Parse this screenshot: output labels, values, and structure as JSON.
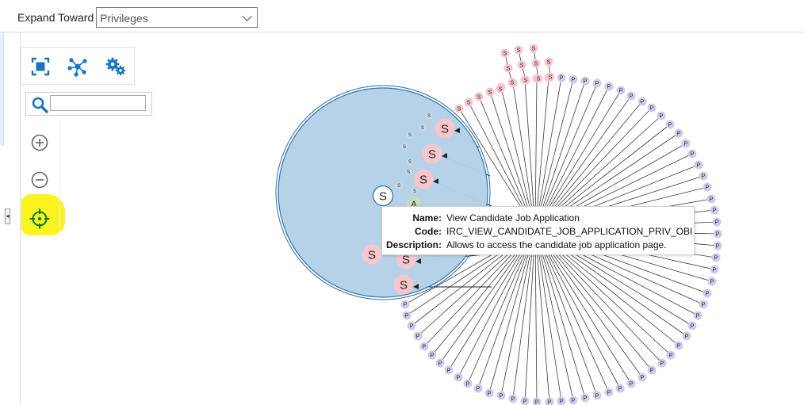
{
  "header": {
    "expand_label": "Expand Toward",
    "expand_select": {
      "value": "Privileges"
    }
  },
  "toolbar": {
    "tools": [
      {
        "icon": "fit-to-screen-icon"
      },
      {
        "icon": "network-layout-icon"
      },
      {
        "icon": "settings-gears-icon"
      }
    ],
    "search": {
      "icon": "search-icon",
      "value": ""
    },
    "zoom_in_icon": "plus-circle-icon",
    "zoom_out_icon": "minus-circle-icon",
    "center_icon": "crosshair-target-icon",
    "highlight_color": "#fbf31f"
  },
  "graph": {
    "colors": {
      "selection_fill": "#b4d1e8",
      "selection_stroke": "#2b6fa8",
      "s_node_fill": "#f7c6cc",
      "p_node_fill": "#cfcaec",
      "edge": "#3a3a3a"
    },
    "node_letters": {
      "s": "S",
      "p": "P",
      "a": "A"
    },
    "selected_node": "S"
  },
  "tooltip": {
    "name_label": "Name:",
    "name_value": "View Candidate Job Application",
    "code_label": "Code:",
    "code_value": "IRC_VIEW_CANDIDATE_JOB_APPLICATION_PRIV_OBI",
    "desc_label": "Description:",
    "desc_value": "Allows to access the candidate job application page."
  }
}
